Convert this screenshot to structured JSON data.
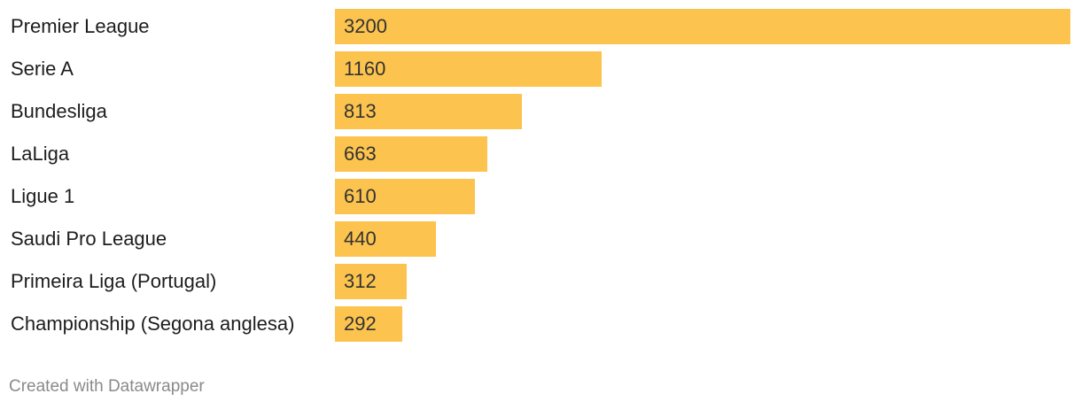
{
  "chart_data": {
    "type": "bar",
    "orientation": "horizontal",
    "categories": [
      "Premier League",
      "Serie A",
      "Bundesliga",
      "LaLiga",
      "Ligue 1",
      "Saudi Pro League",
      "Primeira Liga (Portugal)",
      "Championship (Segona anglesa)"
    ],
    "values": [
      3200,
      1160,
      813,
      663,
      610,
      440,
      312,
      292
    ],
    "value_labels": [
      "3200",
      "1160",
      "813",
      "663",
      "610",
      "440",
      "312",
      "292"
    ],
    "xlim": [
      0,
      3200
    ],
    "bar_color": "#fcc44e",
    "grid": false
  },
  "footer": {
    "credit": "Created with Datawrapper"
  }
}
